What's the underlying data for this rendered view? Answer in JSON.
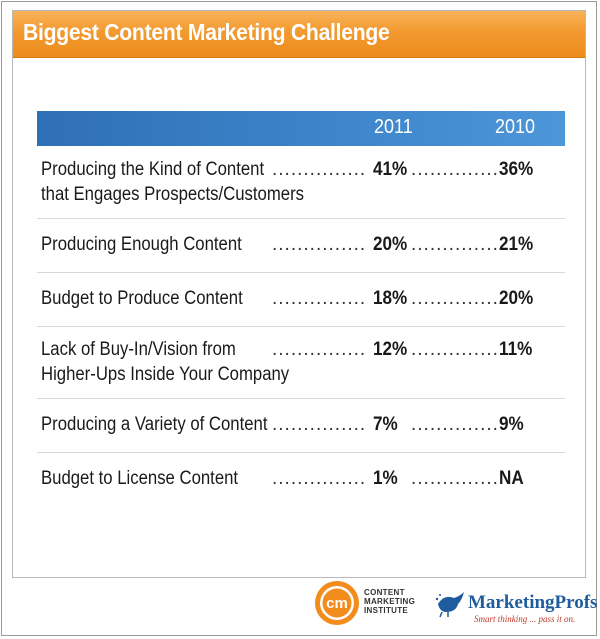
{
  "chart_data": {
    "type": "table",
    "title": "Biggest Content Marketing Challenge",
    "columns": [
      "2011",
      "2010"
    ],
    "rows": [
      {
        "label_lines": [
          "Producing the Kind of Content",
          "that Engages Prospects/Customers"
        ],
        "values": [
          "41%",
          "36%"
        ]
      },
      {
        "label_lines": [
          "Producing Enough Content"
        ],
        "values": [
          "20%",
          "21%"
        ]
      },
      {
        "label_lines": [
          "Budget to Produce Content"
        ],
        "values": [
          "18%",
          "20%"
        ]
      },
      {
        "label_lines": [
          "Lack of Buy-In/Vision from",
          "Higher-Ups Inside Your Company"
        ],
        "values": [
          "12%",
          "11%"
        ]
      },
      {
        "label_lines": [
          "Producing a Variety of Content"
        ],
        "values": [
          "7%",
          "9%"
        ]
      },
      {
        "label_lines": [
          "Budget to License Content"
        ],
        "values": [
          "1%",
          "NA"
        ]
      }
    ]
  },
  "logos": {
    "cmi": {
      "mark": "cm",
      "lines": [
        "CONTENT",
        "MARKETING",
        "INSTITUTE"
      ]
    },
    "marketingprofs": {
      "name": "MarketingProfs",
      "tagline": "Smart thinking ... pass it on."
    }
  },
  "colors": {
    "title_bar": "#f29a30",
    "header_bar": "#3a7fc6",
    "cmi_orange": "#f28c1c",
    "mp_blue": "#1f5c9e"
  }
}
